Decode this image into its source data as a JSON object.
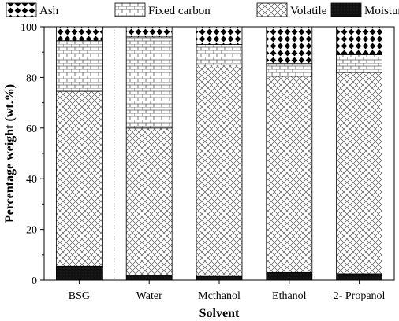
{
  "chart_data": {
    "type": "bar",
    "stacked": true,
    "categories": [
      "BSG",
      "Water",
      "Mcthanol",
      "Ethanol",
      "2- Propanol"
    ],
    "series": [
      {
        "name": "Moisture",
        "pattern": "solid",
        "values": [
          5.5,
          2,
          1.5,
          3,
          2.5
        ]
      },
      {
        "name": "Volatile",
        "pattern": "crosshatch",
        "values": [
          69,
          58,
          83.5,
          77.5,
          79.5
        ]
      },
      {
        "name": "Fixed carbon",
        "pattern": "brick",
        "values": [
          20,
          36,
          8,
          5,
          7
        ]
      },
      {
        "name": "Ash",
        "pattern": "diamond",
        "values": [
          5.5,
          4,
          7,
          14.5,
          11
        ]
      }
    ],
    "legend_order": [
      "Ash",
      "Fixed carbon",
      "Volatile",
      "Moisture"
    ],
    "legend_position": "top",
    "xlabel": "Solvent",
    "ylabel": "Percentage weight (wt.%)",
    "ylim": [
      0,
      100
    ],
    "yticks": [
      "0",
      "20",
      "40",
      "60",
      "80",
      "100"
    ],
    "grid": false,
    "separator_after_category": 0,
    "colors": {
      "ink": "#000000",
      "background": "#ffffff",
      "hatch": "#555555"
    }
  }
}
